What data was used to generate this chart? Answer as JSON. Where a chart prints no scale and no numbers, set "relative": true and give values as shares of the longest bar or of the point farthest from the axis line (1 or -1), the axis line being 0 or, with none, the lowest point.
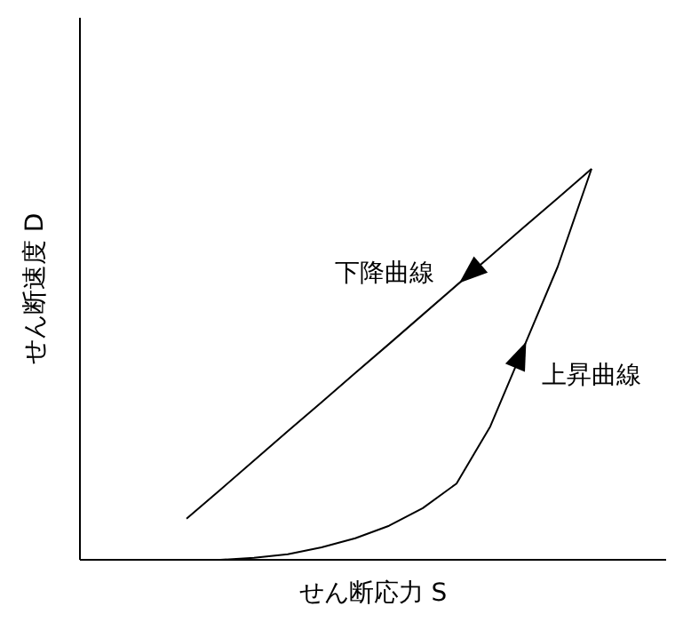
{
  "chart_data": {
    "type": "line",
    "relative": true,
    "xlabel": "せん断応力 S",
    "ylabel": "せん断速度 D",
    "grid": false,
    "marker": "none",
    "line_style": "solid",
    "categories": [
      null,
      null,
      null,
      null,
      null,
      null,
      null,
      null,
      null,
      null,
      null,
      null,
      null
    ],
    "series": [
      {
        "color": "#000000",
        "values": [
          0.105,
          0.179,
          0.254,
          0.329,
          0.403,
          0.478,
          0.552,
          0.627,
          0.702,
          0.776,
          0.851,
          0.925,
          1.0
        ]
      },
      {
        "color": "#000000",
        "values": [
          null,
          0,
          0.005,
          0.014,
          0.032,
          0.055,
          0.087,
          0.132,
          0.195,
          0.341,
          0.545,
          0.75,
          1.0
        ]
      }
    ],
    "annotations": [
      "下降曲線",
      "上昇曲線"
    ]
  }
}
